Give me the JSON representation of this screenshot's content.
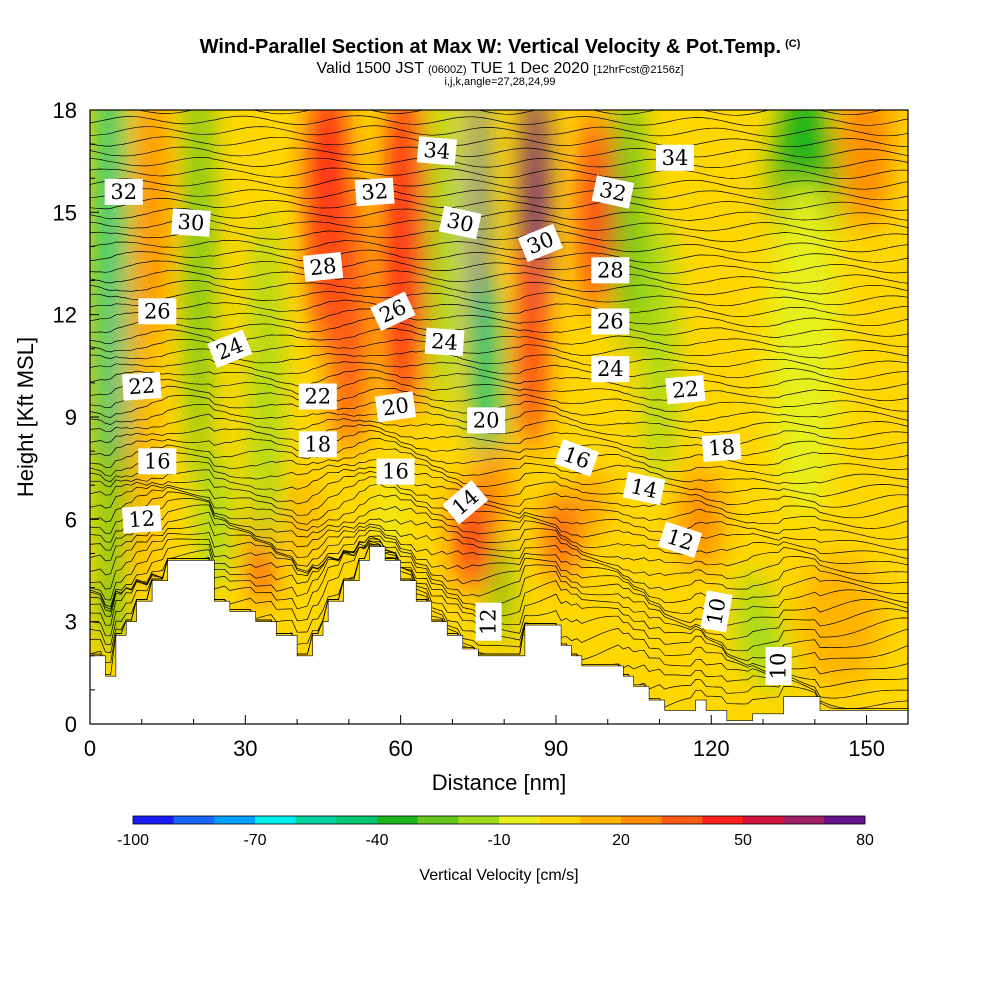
{
  "chart_data": {
    "type": "heatmap",
    "title": "Wind-Parallel Section at Max W: Vertical Velocity & Pot.Temp.",
    "title_mark": "(C)",
    "subtitle_valid": "Valid 1500 JST",
    "subtitle_utc": "(0600Z)",
    "subtitle_date": "TUE 1 Dec 2020",
    "subtitle_fcst": "[12hrFcst@2156z]",
    "subtitle2": "i,j,k,angle=27,28,24,99",
    "xlabel": "Distance [nm]",
    "ylabel": "Height [Kft MSL]",
    "xlim": [
      0,
      158
    ],
    "ylim": [
      0,
      18
    ],
    "xticks": [
      0,
      30,
      60,
      90,
      120,
      150
    ],
    "yticks": [
      0,
      3,
      6,
      9,
      12,
      15,
      18
    ],
    "colorbar": {
      "label": "Vertical Velocity [cm/s]",
      "min": -100,
      "max": 80,
      "step": 10,
      "tick_values": [
        -100,
        -70,
        -40,
        -10,
        20,
        50,
        80
      ],
      "colors": [
        "#1a1aff",
        "#1a64ff",
        "#00a0ff",
        "#00f0f0",
        "#00d2a0",
        "#00c870",
        "#1eb41e",
        "#64c81e",
        "#a0dc1e",
        "#e6f01e",
        "#ffd700",
        "#ffb400",
        "#ff8c00",
        "#ff5a14",
        "#ff1e1e",
        "#d2143c",
        "#a01e64",
        "#64148c"
      ]
    },
    "contour_variable": "Pot.Temp.",
    "contour_labels": [
      {
        "value": "34",
        "x": 67,
        "y": 16.8,
        "angle": 5
      },
      {
        "value": "34",
        "x": 113,
        "y": 16.6,
        "angle": 0
      },
      {
        "value": "32",
        "x": 6.5,
        "y": 15.6,
        "angle": 0
      },
      {
        "value": "32",
        "x": 55,
        "y": 15.6,
        "angle": -4
      },
      {
        "value": "32",
        "x": 101,
        "y": 15.6,
        "angle": 12
      },
      {
        "value": "30",
        "x": 19.5,
        "y": 14.7,
        "angle": 4
      },
      {
        "value": "30",
        "x": 71.5,
        "y": 14.7,
        "angle": 12
      },
      {
        "value": "30",
        "x": 87,
        "y": 14.1,
        "angle": -22
      },
      {
        "value": "28",
        "x": 45,
        "y": 13.4,
        "angle": -6
      },
      {
        "value": "28",
        "x": 100.5,
        "y": 13.3,
        "angle": 0
      },
      {
        "value": "26",
        "x": 13,
        "y": 12.1,
        "angle": 0
      },
      {
        "value": "26",
        "x": 58.5,
        "y": 12.1,
        "angle": -25
      },
      {
        "value": "26",
        "x": 100.5,
        "y": 11.8,
        "angle": 0
      },
      {
        "value": "24",
        "x": 27,
        "y": 11.0,
        "angle": -22
      },
      {
        "value": "24",
        "x": 68.5,
        "y": 11.2,
        "angle": 4
      },
      {
        "value": "24",
        "x": 100.5,
        "y": 10.4,
        "angle": 0
      },
      {
        "value": "22",
        "x": 10,
        "y": 9.9,
        "angle": -4
      },
      {
        "value": "22",
        "x": 44,
        "y": 9.6,
        "angle": 0
      },
      {
        "value": "22",
        "x": 115,
        "y": 9.8,
        "angle": -5
      },
      {
        "value": "20",
        "x": 59,
        "y": 9.3,
        "angle": -8
      },
      {
        "value": "20",
        "x": 76.5,
        "y": 8.9,
        "angle": 0
      },
      {
        "value": "18",
        "x": 44,
        "y": 8.2,
        "angle": 0
      },
      {
        "value": "18",
        "x": 122,
        "y": 8.1,
        "angle": -4
      },
      {
        "value": "16",
        "x": 13,
        "y": 7.7,
        "angle": 0
      },
      {
        "value": "16",
        "x": 59,
        "y": 7.4,
        "angle": 0
      },
      {
        "value": "16",
        "x": 94,
        "y": 7.8,
        "angle": 20
      },
      {
        "value": "14",
        "x": 72.5,
        "y": 6.5,
        "angle": -40
      },
      {
        "value": "14",
        "x": 107,
        "y": 6.9,
        "angle": 12
      },
      {
        "value": "12",
        "x": 10,
        "y": 6.0,
        "angle": -4
      },
      {
        "value": "12",
        "x": 114,
        "y": 5.4,
        "angle": 18
      },
      {
        "value": "12",
        "x": 77,
        "y": 3.0,
        "angle": -90
      },
      {
        "value": "10",
        "x": 121,
        "y": 3.3,
        "angle": -80
      },
      {
        "value": "10",
        "x": 133,
        "y": 1.7,
        "angle": -90
      }
    ]
  }
}
